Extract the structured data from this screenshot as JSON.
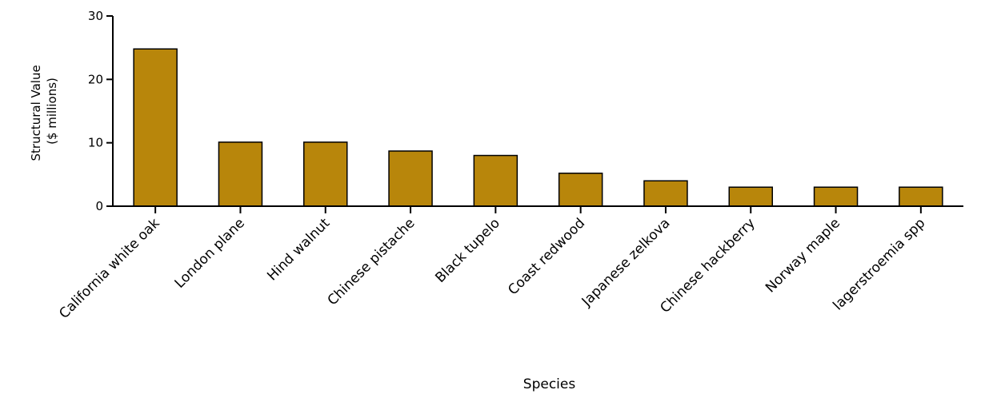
{
  "chart_data": {
    "type": "bar",
    "title": "",
    "xlabel": "Species",
    "ylabel_line1": "Structural Value",
    "ylabel_line2": "($  millions)",
    "ylim": [
      0,
      30
    ],
    "yticks": [
      0,
      10,
      20,
      30
    ],
    "grid": false,
    "bar_color": "#B8860B",
    "bar_edge_color": "#000000",
    "categories": [
      "California white oak",
      "London plane",
      "Hind walnut",
      "Chinese pistache",
      "Black tupelo",
      "Coast redwood",
      "Japanese zelkova",
      "Chinese hackberry",
      "Norway maple",
      "lagerstroemia spp"
    ],
    "values": [
      24.8,
      10.1,
      10.1,
      8.7,
      8.0,
      5.2,
      4.0,
      3.0,
      3.0,
      3.0
    ]
  }
}
